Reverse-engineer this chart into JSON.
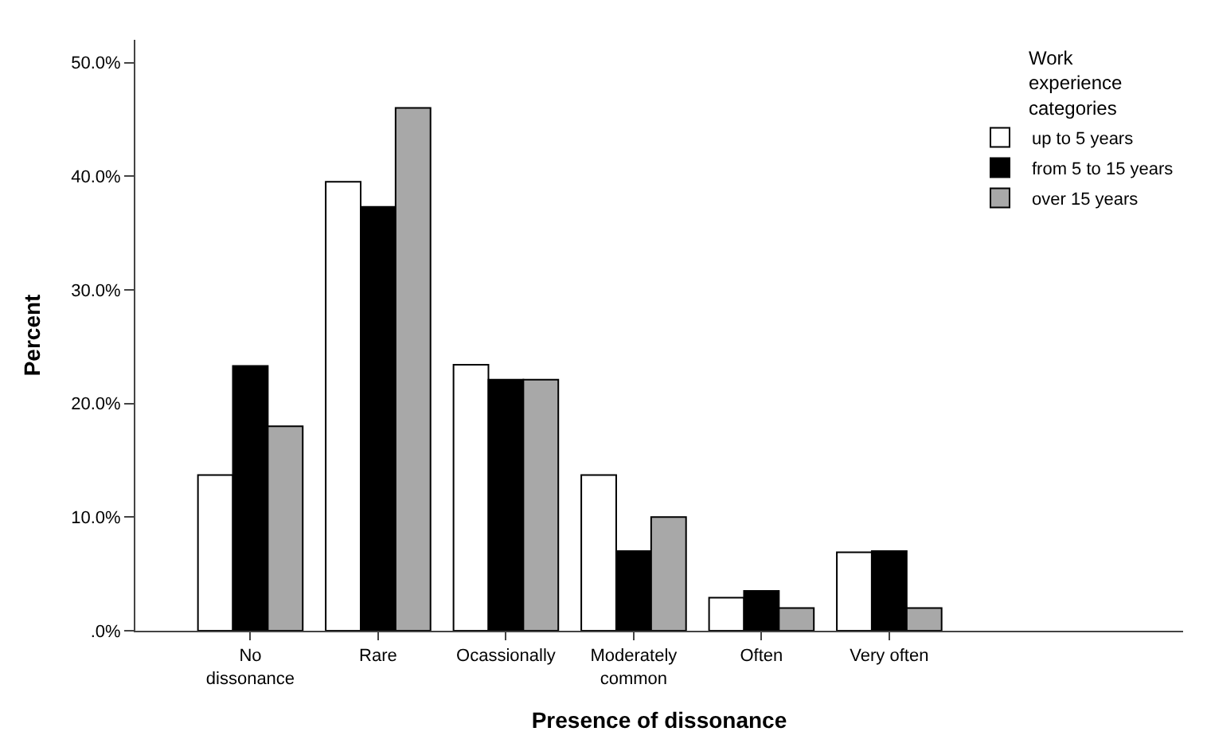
{
  "chart_data": {
    "type": "bar",
    "xlabel": "Presence of dissonance",
    "ylabel": "Percent",
    "legend_title": "Work experience categories",
    "categories": [
      "No dissonance",
      "Rare",
      "Ocassionally",
      "Moderately common",
      "Often",
      "Very often"
    ],
    "series": [
      {
        "name": "up to 5 years",
        "color": "#ffffff",
        "values": [
          13.7,
          39.5,
          23.4,
          13.7,
          2.9,
          6.9
        ]
      },
      {
        "name": "from 5 to 15 years",
        "color": "#000000",
        "values": [
          23.3,
          37.3,
          22.1,
          7.0,
          3.5,
          7.0
        ]
      },
      {
        "name": "over 15 years",
        "color": "#a8a8a8",
        "values": [
          18.0,
          46.0,
          22.1,
          10.0,
          2.0,
          2.0
        ]
      }
    ],
    "ylim": [
      0,
      52
    ],
    "yticks": [
      {
        "value": 0,
        "label": ".0%"
      },
      {
        "value": 10,
        "label": "10.0%"
      },
      {
        "value": 20,
        "label": "20.0%"
      },
      {
        "value": 30,
        "label": "30.0%"
      },
      {
        "value": 40,
        "label": "40.0%"
      },
      {
        "value": 50,
        "label": "50.0%"
      }
    ],
    "legend": "top right"
  }
}
